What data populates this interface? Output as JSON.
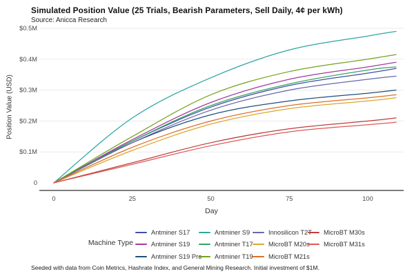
{
  "header": {
    "title": "Simulated Position Value (25 Trials, Bearish Parameters, Sell Daily, 4¢ per kWh)",
    "subtitle": "Source: Anicca Research"
  },
  "footer": {
    "caption": "Seeded with data from Coin Metrics, Hashrate Index, and General Mining Research. Initial investment of $1M."
  },
  "chart_data": {
    "type": "line",
    "title": "Simulated Position Value (25 Trials, Bearish Parameters, Sell Daily, 4¢ per kWh)",
    "subtitle": "Source: Anicca Research",
    "xlabel": "Day",
    "ylabel": "Position Value (USD)",
    "legend_title": "Machine Type",
    "legend_position": "bottom",
    "grid": "horizontal-only",
    "xlim": [
      0,
      109
    ],
    "ylim": [
      0,
      0.5
    ],
    "y_unit": "$M (USD)",
    "x_ticks": [
      {
        "v": 0,
        "label": "0"
      },
      {
        "v": 25,
        "label": "25"
      },
      {
        "v": 50,
        "label": "50"
      },
      {
        "v": 75,
        "label": "75"
      },
      {
        "v": 100,
        "label": "100"
      }
    ],
    "y_ticks": [
      {
        "v": 0.0,
        "label": "0"
      },
      {
        "v": 0.1,
        "label": "$0.1M"
      },
      {
        "v": 0.2,
        "label": "$0.2M"
      },
      {
        "v": 0.3,
        "label": "$0.3M"
      },
      {
        "v": 0.4,
        "label": "$0.4M"
      },
      {
        "v": 0.5,
        "label": "$0.5M"
      }
    ],
    "x": [
      0,
      25,
      50,
      75,
      100,
      109
    ],
    "series": [
      {
        "name": "Antminer S17",
        "color": "#3e4fa3",
        "values": [
          0,
          0.135,
          0.245,
          0.315,
          0.355,
          0.37
        ]
      },
      {
        "name": "Antminer S19",
        "color": "#a23aa0",
        "values": [
          0,
          0.14,
          0.26,
          0.335,
          0.375,
          0.39
        ]
      },
      {
        "name": "Antminer S19 Pro",
        "color": "#1e4e79",
        "values": [
          0,
          0.13,
          0.22,
          0.265,
          0.29,
          0.3
        ]
      },
      {
        "name": "Antminer S9",
        "color": "#2aa6a1",
        "values": [
          0,
          0.21,
          0.34,
          0.43,
          0.475,
          0.49
        ]
      },
      {
        "name": "Antminer T17",
        "color": "#36a35f",
        "values": [
          0,
          0.135,
          0.25,
          0.32,
          0.365,
          0.375
        ]
      },
      {
        "name": "Antminer T19",
        "color": "#74a21e",
        "values": [
          0,
          0.15,
          0.285,
          0.36,
          0.4,
          0.415
        ]
      },
      {
        "name": "Innosilicon T2T",
        "color": "#6467ab",
        "values": [
          0,
          0.13,
          0.235,
          0.3,
          0.335,
          0.345
        ]
      },
      {
        "name": "MicroBT M20s",
        "color": "#dca62b",
        "values": [
          0,
          0.105,
          0.19,
          0.24,
          0.265,
          0.275
        ]
      },
      {
        "name": "MicroBT M21s",
        "color": "#dc6e26",
        "values": [
          0,
          0.115,
          0.2,
          0.25,
          0.275,
          0.285
        ]
      },
      {
        "name": "MicroBT M30s",
        "color": "#bd3d3d",
        "values": [
          0,
          0.065,
          0.13,
          0.175,
          0.2,
          0.21
        ]
      },
      {
        "name": "MicroBT M31s",
        "color": "#dd5757",
        "values": [
          0,
          0.06,
          0.12,
          0.165,
          0.188,
          0.196
        ]
      }
    ],
    "legend_columns": [
      3,
      3,
      3,
      2
    ]
  }
}
